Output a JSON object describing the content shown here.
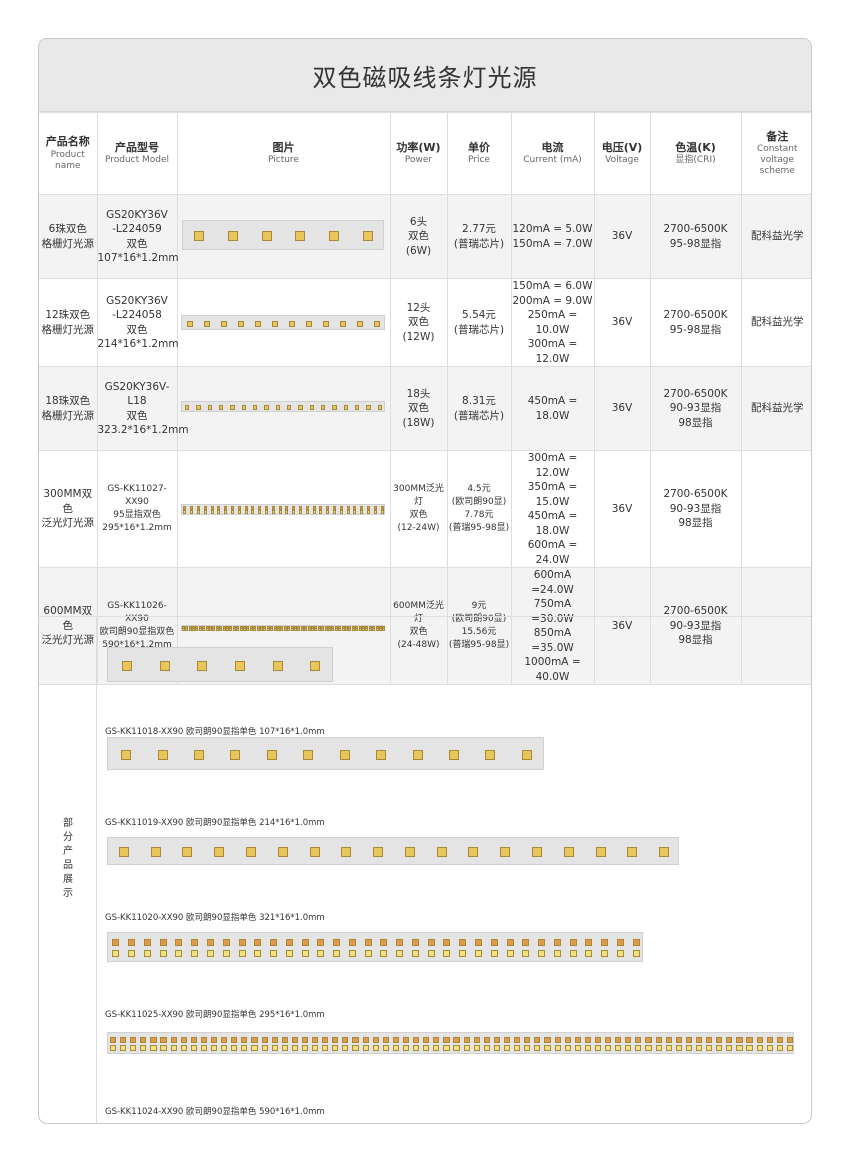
{
  "title": "双色磁吸线条灯光源",
  "columns": [
    {
      "cn": "产品名称",
      "en": "Product name"
    },
    {
      "cn": "产品型号",
      "en": "Product Model"
    },
    {
      "cn": "图片",
      "en": "Picture"
    },
    {
      "cn": "功率(W)",
      "en": "Power"
    },
    {
      "cn": "单价",
      "en": "Price"
    },
    {
      "cn": "电流",
      "en": "Current (mA)"
    },
    {
      "cn": "电压(V)",
      "en": "Voltage"
    },
    {
      "cn": "色温(K)",
      "en": "显指(CRI)"
    },
    {
      "cn": "备注",
      "en": "Constant voltage scheme"
    }
  ],
  "rows": [
    {
      "name": [
        "6珠双色",
        "格栅灯光源"
      ],
      "model": [
        "GS20KY36V",
        "-L224059",
        "双色",
        "107*16*1.2mm"
      ],
      "power": [
        "6头",
        "双色",
        "(6W)"
      ],
      "price": [
        "2.77元",
        "(普瑞芯片)"
      ],
      "current": [
        "120mA = 5.0W",
        "150mA = 7.0W"
      ],
      "voltage": "36V",
      "cct": [
        "2700-6500K",
        "95-98显指"
      ],
      "note": "配科益光学"
    },
    {
      "name": [
        "12珠双色",
        "格栅灯光源"
      ],
      "model": [
        "GS20KY36V",
        "-L224058",
        "双色",
        "214*16*1.2mm"
      ],
      "power": [
        "12头",
        "双色",
        "(12W)"
      ],
      "price": [
        "5.54元",
        "(普瑞芯片)"
      ],
      "current": [
        "150mA = 6.0W",
        "200mA = 9.0W",
        "250mA = 10.0W",
        "300mA = 12.0W"
      ],
      "voltage": "36V",
      "cct": [
        "2700-6500K",
        "95-98显指"
      ],
      "note": "配科益光学"
    },
    {
      "name": [
        "18珠双色",
        "格栅灯光源"
      ],
      "model": [
        "GS20KY36V-L18",
        "双色",
        "323.2*16*1.2mm"
      ],
      "power": [
        "18头",
        "双色",
        "(18W)"
      ],
      "price": [
        "8.31元",
        "(普瑞芯片)"
      ],
      "current": [
        "450mA = 18.0W"
      ],
      "voltage": "36V",
      "cct": [
        "2700-6500K",
        "90-93显指",
        "98显指"
      ],
      "note": "配科益光学"
    },
    {
      "name": [
        "300MM双色",
        "泛光灯光源"
      ],
      "model": [
        "GS-KK11027-XX90",
        "95显指双色",
        "295*16*1.2mm"
      ],
      "power": [
        "300MM泛光灯",
        "双色",
        "(12-24W)"
      ],
      "price": [
        "4.5元",
        "(欧司朗90显)",
        "7.78元",
        "(普瑞95-98显)"
      ],
      "current": [
        "300mA = 12.0W",
        "350mA = 15.0W",
        "450mA = 18.0W",
        "600mA = 24.0W"
      ],
      "voltage": "36V",
      "cct": [
        "2700-6500K",
        "90-93显指",
        "98显指"
      ],
      "note": ""
    },
    {
      "name": [
        "600MM双色",
        "泛光灯光源"
      ],
      "model": [
        "GS-KK11026-XX90",
        "欧司朗90显指双色",
        "590*16*1.2mm"
      ],
      "power": [
        "600MM泛光灯",
        "双色",
        "(24-48W)"
      ],
      "price": [
        "9元",
        "(欧司朗90显)",
        "15.56元",
        "(普瑞95-98显)"
      ],
      "current": [
        "600mA =24.0W",
        "750mA =30.0W",
        "850mA =35.0W",
        "1000mA = 40.0W"
      ],
      "voltage": "36V",
      "cct": [
        "2700-6500K",
        "90-93显指",
        "98显指"
      ],
      "note": ""
    }
  ],
  "showcase": {
    "label": "部分产品展示",
    "items": [
      "GS-KK11018-XX90  欧司朗90显指单色  107*16*1.0mm",
      "GS-KK11019-XX90 欧司朗90显指单色 214*16*1.0mm",
      "GS-KK11020-XX90 欧司朗90显指单色 321*16*1.0mm",
      "GS-KK11025-XX90 欧司朗90显指单色 295*16*1.0mm",
      "GS-KK11024-XX90 欧司朗90显指单色 590*16*1.0mm"
    ]
  }
}
